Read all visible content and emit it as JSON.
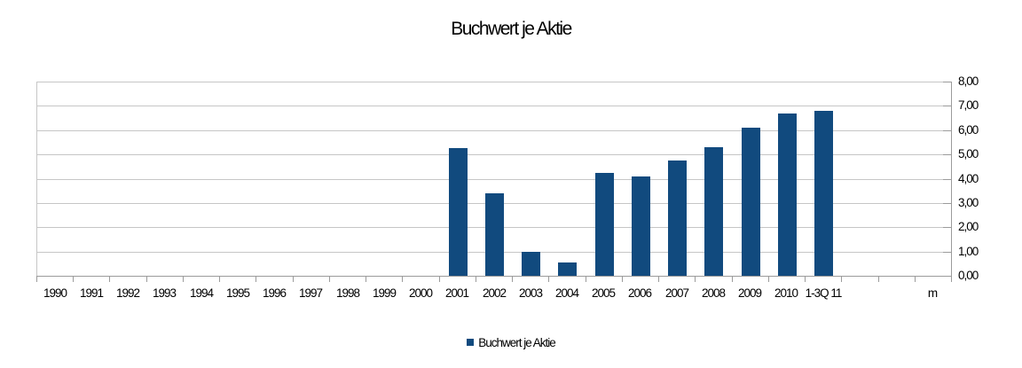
{
  "chart_data": {
    "type": "bar",
    "title": "Buchwert je Aktie",
    "categories": [
      "1990",
      "1991",
      "1992",
      "1993",
      "1994",
      "1995",
      "1996",
      "1997",
      "1998",
      "1999",
      "2000",
      "2001",
      "2002",
      "2003",
      "2004",
      "2005",
      "2006",
      "2007",
      "2008",
      "2009",
      "2010",
      "1-3Q 11",
      "",
      "",
      "m"
    ],
    "series": [
      {
        "name": "Buchwert je Aktie",
        "values": [
          null,
          null,
          null,
          null,
          null,
          null,
          null,
          null,
          null,
          null,
          null,
          5.25,
          3.4,
          1.0,
          0.55,
          4.25,
          4.1,
          4.75,
          5.3,
          6.1,
          6.7,
          6.8,
          null,
          null,
          null
        ]
      }
    ],
    "ylim": [
      0,
      8
    ],
    "ytick_step": 1,
    "ytick_labels": [
      "0,00",
      "1,00",
      "2,00",
      "3,00",
      "4,00",
      "5,00",
      "6,00",
      "7,00",
      "8,00"
    ],
    "grid": true,
    "y_axis_side": "right",
    "legend_position": "bottom",
    "colors": {
      "bar": "#114a7e",
      "gridline": "#c6c6c6",
      "axis": "#9b9b9b",
      "text": "#000000",
      "background": "#ffffff"
    }
  }
}
